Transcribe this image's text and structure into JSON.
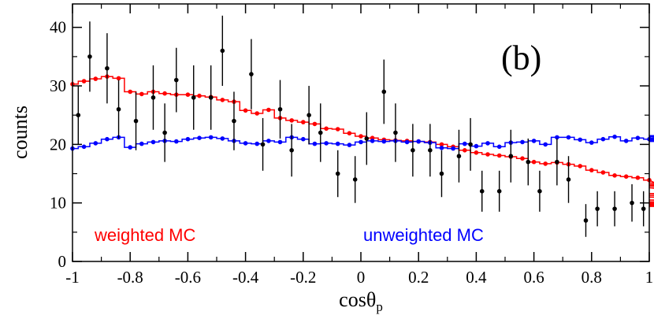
{
  "chart_data": {
    "type": "histogram_with_points",
    "panel_label": "(b)",
    "xlabel_base": "cos",
    "xlabel_theta": "θ",
    "xlabel_sub": "p",
    "ylabel": "counts",
    "xlim": [
      -1,
      1
    ],
    "ylim": [
      0,
      44
    ],
    "x_ticks": [
      -1,
      -0.8,
      -0.6,
      -0.4,
      -0.2,
      0,
      0.2,
      0.4,
      0.6,
      0.8,
      1
    ],
    "x_tick_labels": [
      "-1",
      "-0.8",
      "-0.6",
      "-0.4",
      "-0.2",
      "0",
      "0.2",
      "0.4",
      "0.6",
      "0.8",
      "1"
    ],
    "y_ticks": [
      0,
      10,
      20,
      30,
      40
    ],
    "y_tick_labels": [
      "0",
      "10",
      "20",
      "30",
      "40"
    ],
    "bin_width": 0.04,
    "series": [
      {
        "name": "weighted MC",
        "color": "#ff0000",
        "style": "step",
        "values": [
          30.3,
          30.8,
          31.2,
          31.6,
          31.3,
          29.0,
          28.6,
          29.0,
          28.7,
          28.5,
          28.5,
          28.3,
          28.1,
          27.6,
          27.3,
          25.8,
          25.3,
          25.9,
          24.5,
          24.1,
          23.8,
          23.5,
          22.7,
          22.6,
          21.9,
          21.4,
          21.1,
          20.8,
          20.7,
          20.6,
          20.5,
          20.4,
          20.0,
          19.6,
          19.0,
          18.6,
          18.3,
          18.1,
          17.9,
          17.6,
          17.0,
          16.7,
          16.9,
          16.6,
          16.3,
          15.6,
          15.2,
          14.7,
          14.5,
          14.3,
          13.9,
          13.4,
          13.1,
          13.0,
          12.9,
          12.6,
          11.6,
          11.3,
          11.0,
          10.5,
          10.2,
          10.0,
          9.8,
          9.6,
          9.4
        ]
      },
      {
        "name": "unweighted MC",
        "color": "#0000ff",
        "style": "step",
        "values": [
          19.3,
          19.6,
          20.2,
          20.9,
          21.2,
          19.5,
          20.1,
          20.4,
          20.6,
          20.5,
          20.9,
          21.1,
          21.2,
          21.0,
          20.6,
          20.2,
          20.1,
          20.6,
          20.4,
          21.2,
          20.9,
          20.1,
          20.2,
          20.1,
          19.9,
          20.4,
          20.6,
          20.5,
          20.6,
          20.4,
          20.5,
          20.3,
          19.4,
          19.3,
          20.1,
          19.7,
          20.2,
          19.6,
          20.3,
          20.4,
          20.6,
          20.0,
          21.2,
          21.2,
          20.8,
          20.3,
          20.9,
          21.3,
          20.6,
          21.1,
          20.9,
          20.5,
          21.0,
          21.5,
          21.4,
          20.5,
          20.8,
          20.7,
          20.7,
          20.6,
          21.0,
          21.0,
          21.0,
          21.0,
          21.3
        ]
      },
      {
        "name": "data",
        "color": "#000000",
        "style": "points_with_errors",
        "points": [
          {
            "x": -0.98,
            "y": 25,
            "err": 5
          },
          {
            "x": -0.94,
            "y": 35,
            "err": 6
          },
          {
            "x": -0.88,
            "y": 33,
            "err": 6
          },
          {
            "x": -0.84,
            "y": 26,
            "err": 5
          },
          {
            "x": -0.78,
            "y": 24,
            "err": 5
          },
          {
            "x": -0.72,
            "y": 28,
            "err": 5.5
          },
          {
            "x": -0.68,
            "y": 22,
            "err": 5
          },
          {
            "x": -0.64,
            "y": 31,
            "err": 5.5
          },
          {
            "x": -0.58,
            "y": 28,
            "err": 5.5
          },
          {
            "x": -0.52,
            "y": 28,
            "err": 5.5
          },
          {
            "x": -0.48,
            "y": 36,
            "err": 6
          },
          {
            "x": -0.44,
            "y": 24,
            "err": 5
          },
          {
            "x": -0.38,
            "y": 32,
            "err": 6
          },
          {
            "x": -0.34,
            "y": 20,
            "err": 4.5
          },
          {
            "x": -0.28,
            "y": 26,
            "err": 5
          },
          {
            "x": -0.24,
            "y": 19,
            "err": 4.5
          },
          {
            "x": -0.18,
            "y": 25,
            "err": 5
          },
          {
            "x": -0.14,
            "y": 22,
            "err": 5
          },
          {
            "x": -0.08,
            "y": 15,
            "err": 4
          },
          {
            "x": -0.02,
            "y": 14,
            "err": 4
          },
          {
            "x": 0.02,
            "y": 21,
            "err": 4.5
          },
          {
            "x": 0.08,
            "y": 29,
            "err": 5.5
          },
          {
            "x": 0.12,
            "y": 22,
            "err": 5
          },
          {
            "x": 0.18,
            "y": 19,
            "err": 4.5
          },
          {
            "x": 0.24,
            "y": 19,
            "err": 4.5
          },
          {
            "x": 0.28,
            "y": 15,
            "err": 4
          },
          {
            "x": 0.34,
            "y": 18,
            "err": 4.5
          },
          {
            "x": 0.38,
            "y": 20,
            "err": 4.5
          },
          {
            "x": 0.42,
            "y": 12,
            "err": 3.5
          },
          {
            "x": 0.48,
            "y": 12,
            "err": 3.5
          },
          {
            "x": 0.52,
            "y": 18,
            "err": 4.5
          },
          {
            "x": 0.58,
            "y": 17,
            "err": 4
          },
          {
            "x": 0.62,
            "y": 12,
            "err": 3.5
          },
          {
            "x": 0.68,
            "y": 17,
            "err": 4
          },
          {
            "x": 0.72,
            "y": 14,
            "err": 4
          },
          {
            "x": 0.78,
            "y": 7,
            "err": 2.8
          },
          {
            "x": 0.82,
            "y": 9,
            "err": 3
          },
          {
            "x": 0.88,
            "y": 9,
            "err": 3
          },
          {
            "x": 0.94,
            "y": 10,
            "err": 3.2
          },
          {
            "x": 0.98,
            "y": 9,
            "err": 3
          }
        ]
      }
    ],
    "legend": [
      {
        "label": "weighted MC",
        "color": "#ff0000",
        "position": "bottom-left"
      },
      {
        "label": "unweighted MC",
        "color": "#0000ff",
        "position": "bottom-center"
      }
    ]
  }
}
